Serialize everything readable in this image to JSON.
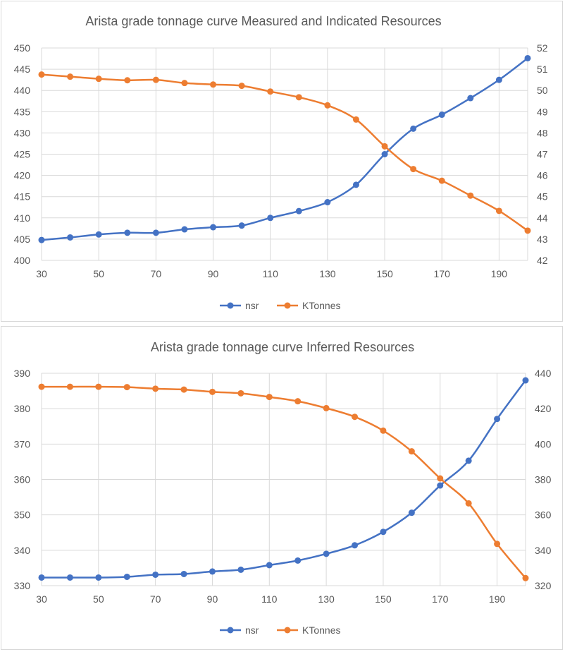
{
  "colors": {
    "nsr": "#4472c4",
    "ktonnes": "#ed7d31",
    "grid": "#d9d9d9",
    "text": "#595959"
  },
  "chart_data": [
    {
      "type": "line",
      "title": "Arista grade tonnage curve Measured and Indicated Resources",
      "x": [
        30,
        40,
        50,
        60,
        70,
        80,
        90,
        100,
        110,
        120,
        130,
        140,
        150,
        160,
        170,
        180,
        190,
        200
      ],
      "xticks": [
        30,
        50,
        70,
        90,
        110,
        130,
        150,
        170,
        190
      ],
      "xlim": [
        30,
        200
      ],
      "ylim_left": [
        400,
        450
      ],
      "yticks_left": [
        400,
        405,
        410,
        415,
        420,
        425,
        430,
        435,
        440,
        445,
        450
      ],
      "ylim_right": [
        42,
        52
      ],
      "yticks_right": [
        42,
        43,
        44,
        45,
        46,
        47,
        48,
        49,
        50,
        51,
        52
      ],
      "grid": true,
      "legend": "bottom",
      "series": [
        {
          "name": "nsr",
          "axis": "left",
          "values": [
            404.8,
            405.4,
            406.1,
            406.5,
            406.5,
            407.3,
            407.8,
            408.2,
            410.0,
            411.6,
            413.7,
            417.8,
            425.0,
            431.0,
            434.3,
            438.2,
            442.5,
            447.6
          ]
        },
        {
          "name": "KTonnes",
          "axis": "right",
          "values": [
            50.75,
            50.65,
            50.55,
            50.48,
            50.5,
            50.35,
            50.28,
            50.22,
            49.95,
            49.68,
            49.3,
            48.63,
            47.37,
            46.3,
            45.75,
            45.05,
            44.33,
            43.4
          ]
        }
      ]
    },
    {
      "type": "line",
      "title": "Arista grade tonnage curve Inferred Resources",
      "x": [
        30,
        40,
        50,
        60,
        70,
        80,
        90,
        100,
        110,
        120,
        130,
        140,
        150,
        160,
        170,
        180,
        190,
        200
      ],
      "xticks": [
        30,
        50,
        70,
        90,
        110,
        130,
        150,
        170,
        190
      ],
      "xlim": [
        30,
        200
      ],
      "ylim_left": [
        330,
        390
      ],
      "yticks_left": [
        330,
        340,
        350,
        360,
        370,
        380,
        390
      ],
      "ylim_right": [
        320,
        440
      ],
      "yticks_right": [
        320,
        340,
        360,
        380,
        400,
        420,
        440
      ],
      "grid": true,
      "legend": "bottom",
      "series": [
        {
          "name": "nsr",
          "axis": "left",
          "values": [
            332.3,
            332.3,
            332.3,
            332.5,
            333.1,
            333.3,
            334.0,
            334.5,
            335.8,
            337.1,
            339.0,
            341.4,
            345.2,
            350.6,
            358.3,
            365.3,
            377.1,
            388.0
          ]
        },
        {
          "name": "KTonnes",
          "axis": "right",
          "values": [
            432.4,
            432.4,
            432.4,
            432.2,
            431.3,
            430.8,
            429.5,
            428.7,
            426.6,
            424.2,
            420.3,
            415.4,
            407.6,
            395.9,
            380.6,
            366.5,
            343.6,
            324.3
          ]
        }
      ]
    }
  ]
}
